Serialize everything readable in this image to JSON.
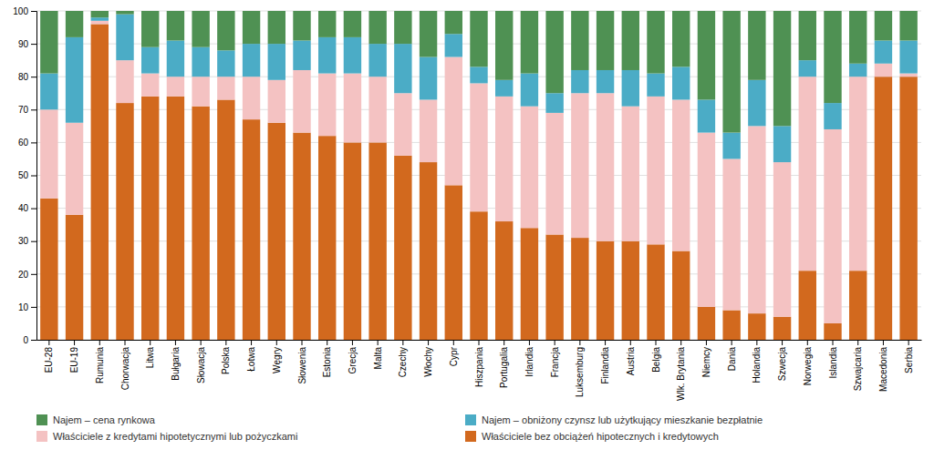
{
  "chart_data": {
    "type": "bar",
    "stacked": true,
    "categories": [
      "EU-28",
      "EU-19",
      "Rumunia",
      "Chorwacja",
      "Litwa",
      "Bułgaria",
      "Słowacja",
      "Polska",
      "Łotwa",
      "Węgry",
      "Słowenia",
      "Estonia",
      "Grecja",
      "Malta",
      "Czechy",
      "Włochy",
      "Cypr",
      "Hiszpania",
      "Portugalia",
      "Irlandia",
      "Francja",
      "Luksemburg",
      "Finlandia",
      "Austria",
      "Belgia",
      "Wlk. Brytania",
      "Niemcy",
      "Dania",
      "Holandia",
      "Szwecja",
      "Norwegia",
      "Islandia",
      "Szwajcaria",
      "Macedonia",
      "Serbia"
    ],
    "series": [
      {
        "name": "Właściciele bez obciążeń hipotecznych i kredytowych",
        "color": "#D2691E",
        "values": [
          43,
          38,
          96,
          72,
          74,
          74,
          71,
          73,
          67,
          66,
          63,
          62,
          60,
          60,
          56,
          54,
          47,
          39,
          36,
          34,
          32,
          31,
          30,
          30,
          29,
          27,
          10,
          9,
          8,
          7,
          21,
          5,
          21,
          80,
          80
        ]
      },
      {
        "name": "Właściciele z kredytami hipotetycznymi lub pożyczkami",
        "color": "#F4C2C2",
        "values": [
          27,
          28,
          1,
          13,
          7,
          6,
          9,
          7,
          13,
          13,
          19,
          19,
          21,
          20,
          19,
          19,
          39,
          39,
          38,
          37,
          37,
          44,
          45,
          41,
          45,
          46,
          53,
          46,
          57,
          47,
          59,
          59,
          59,
          4,
          1
        ]
      },
      {
        "name": "Najem – obniżony czynsz lub użytkujący mieszkanie bezpłatnie",
        "color": "#4BACC6",
        "values": [
          11,
          26,
          1,
          14,
          8,
          11,
          9,
          8,
          10,
          11,
          9,
          11,
          11,
          10,
          15,
          13,
          7,
          5,
          5,
          10,
          6,
          7,
          7,
          11,
          7,
          10,
          10,
          8,
          14,
          11,
          5,
          8,
          4,
          7,
          10
        ]
      },
      {
        "name": "Najem – cena rynkowa",
        "color": "#4F9153",
        "values": [
          19,
          8,
          2,
          1,
          11,
          9,
          11,
          12,
          10,
          10,
          9,
          8,
          8,
          10,
          10,
          14,
          7,
          17,
          21,
          19,
          25,
          18,
          18,
          18,
          19,
          17,
          27,
          37,
          21,
          35,
          15,
          28,
          16,
          9,
          9
        ]
      }
    ],
    "ylim": [
      0,
      100
    ],
    "yticks": [
      0,
      10,
      20,
      30,
      40,
      50,
      60,
      70,
      80,
      90,
      100
    ],
    "grid": true,
    "legend": "lower left"
  }
}
